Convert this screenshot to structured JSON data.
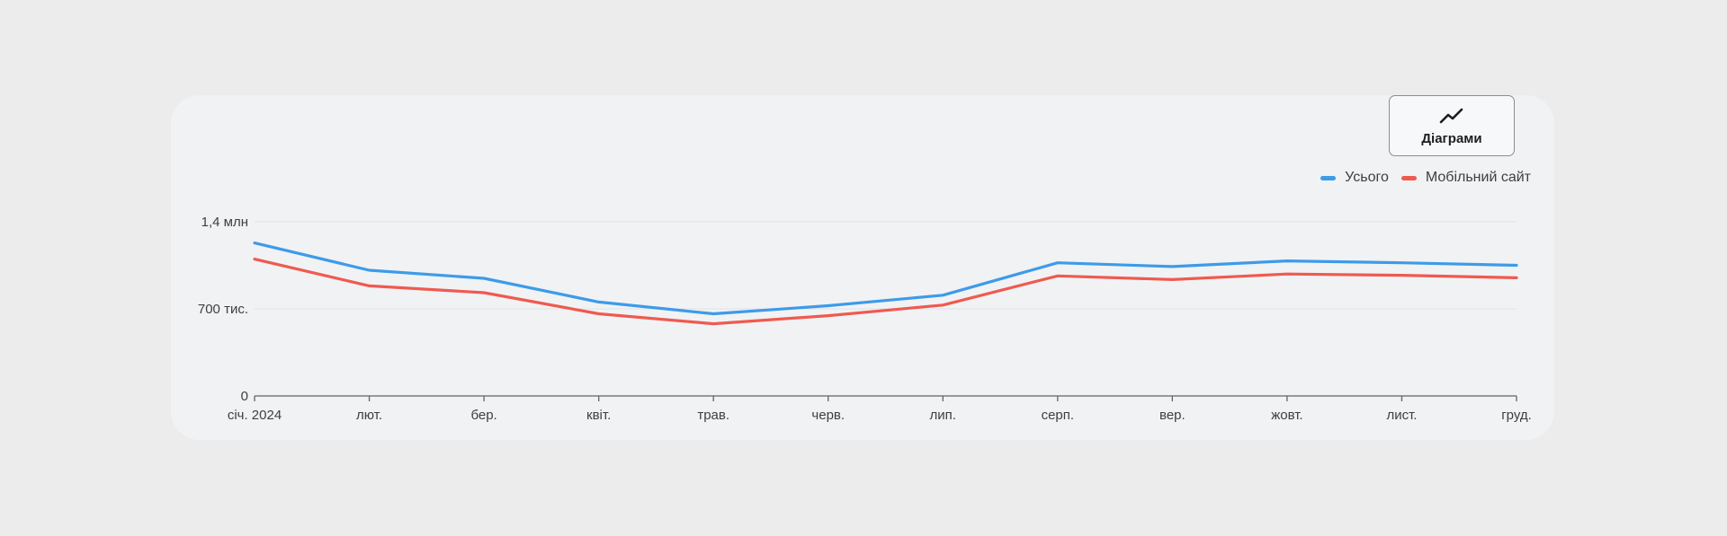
{
  "button": {
    "label": "Діаграми",
    "icon": "line-chart-icon"
  },
  "colors": {
    "total": "#3d9be9",
    "mobile": "#ef5a4f",
    "axis": "#5f6368",
    "grid": "#e1e3e6"
  },
  "chart_data": {
    "type": "line",
    "categories": [
      "січ. 2024",
      "лют.",
      "бер.",
      "квіт.",
      "трав.",
      "черв.",
      "лип.",
      "серп.",
      "вер.",
      "жовт.",
      "лист.",
      "груд."
    ],
    "y_ticks": [
      {
        "value": 0,
        "label": "0"
      },
      {
        "value": 700000,
        "label": "700 тис."
      },
      {
        "value": 1400000,
        "label": "1,4 млн"
      }
    ],
    "ylim": [
      0,
      1400000
    ],
    "grid": true,
    "legend_position": "top-right",
    "series": [
      {
        "name": "Усього",
        "color": "#3d9be9",
        "values": [
          1230000,
          1010000,
          945000,
          755000,
          660000,
          725000,
          810000,
          1070000,
          1040000,
          1085000,
          1070000,
          1050000
        ]
      },
      {
        "name": "Мобільний сайт",
        "color": "#ef5a4f",
        "values": [
          1100000,
          885000,
          830000,
          660000,
          580000,
          645000,
          730000,
          965000,
          935000,
          980000,
          970000,
          950000
        ]
      }
    ]
  }
}
